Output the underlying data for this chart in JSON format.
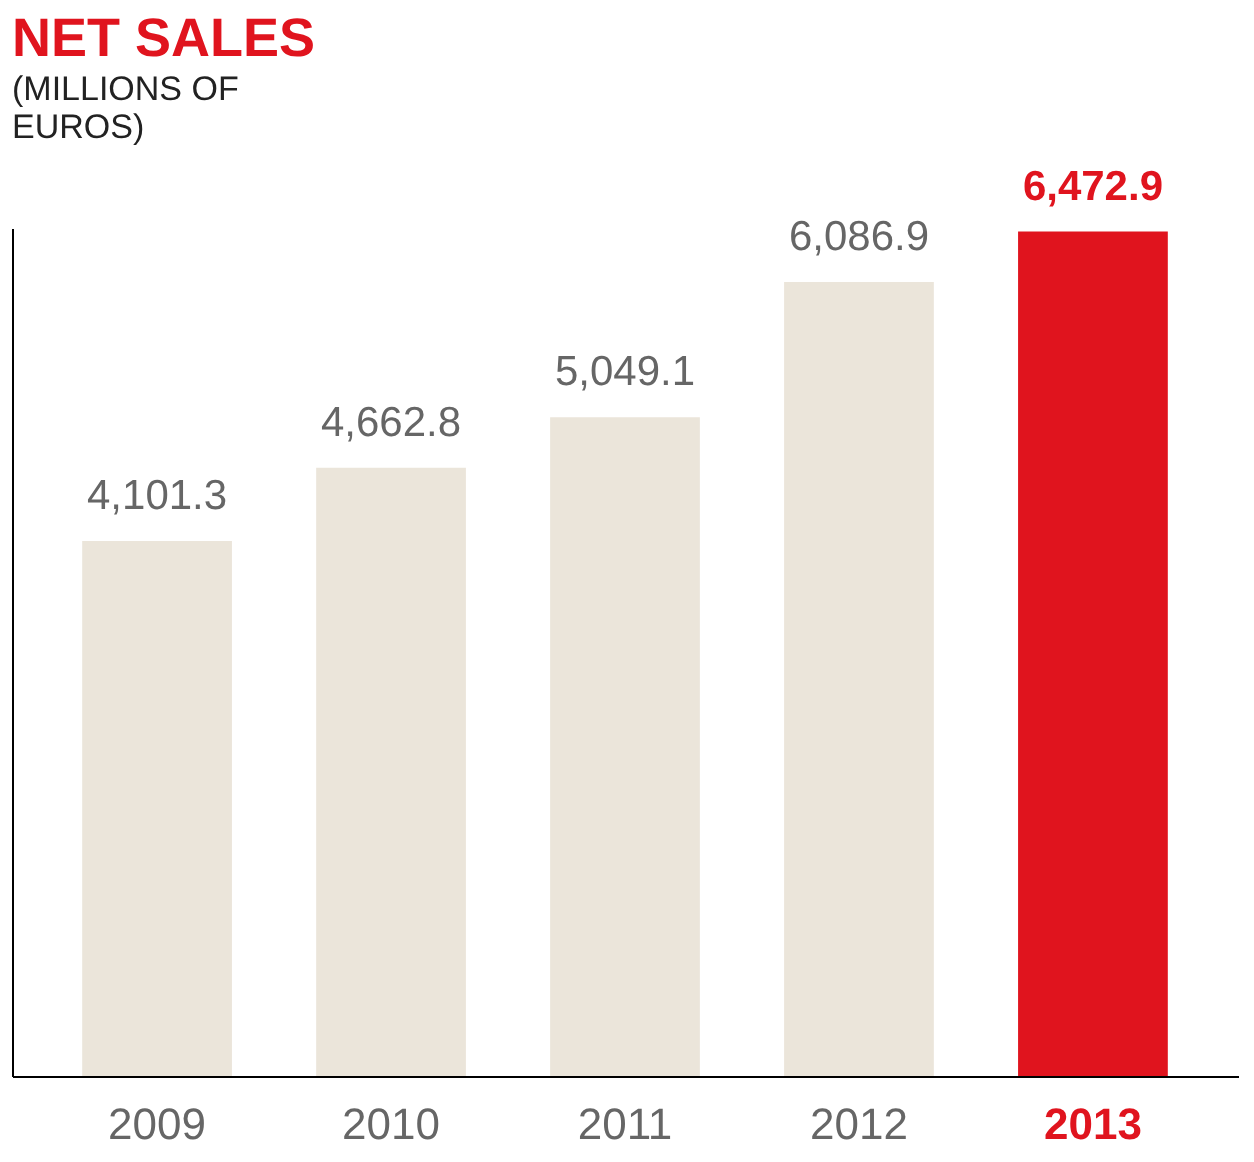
{
  "chart_data": {
    "type": "bar",
    "title": "NET SALES",
    "subtitle": "(MILLIONS OF EUROS)",
    "categories": [
      "2009",
      "2010",
      "2011",
      "2012",
      "2013"
    ],
    "values": [
      4101.3,
      4662.8,
      5049.1,
      6086.9,
      6472.9
    ],
    "value_labels": [
      "4,101.3",
      "4,662.8",
      "5,049.1",
      "6,086.9",
      "6,472.9"
    ],
    "colors": [
      "#ebe5da",
      "#ebe5da",
      "#ebe5da",
      "#ebe5da",
      "#e0141e"
    ],
    "grid": false,
    "tick_labels": "x"
  }
}
